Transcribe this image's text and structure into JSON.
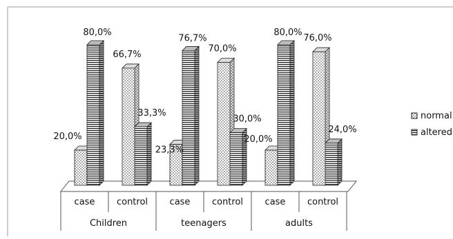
{
  "chart_data": {
    "type": "bar",
    "title": "",
    "xlabel": "",
    "ylabel": "",
    "ylim": [
      0,
      100
    ],
    "groups": [
      "Children",
      "teenagers",
      "adults"
    ],
    "categories": [
      "case",
      "control",
      "case",
      "control",
      "case",
      "control"
    ],
    "category_group_index": [
      0,
      0,
      1,
      1,
      2,
      2
    ],
    "series": [
      {
        "name": "normal",
        "values": [
          20.0,
          66.7,
          23.3,
          70.0,
          20.0,
          76.0
        ],
        "labels": [
          "20,0%",
          "66,7%",
          "23,3%",
          "70,0%",
          "20,0%",
          "76,0%"
        ]
      },
      {
        "name": "altered",
        "values": [
          80.0,
          33.3,
          76.7,
          30.0,
          80.0,
          24.0
        ],
        "labels": [
          "80,0%",
          "33,3%",
          "76,7%",
          "30,0%",
          "80,0%",
          "24,0%"
        ]
      }
    ],
    "legend_position": "right",
    "grid": false,
    "style": "3d-bars",
    "colors": {
      "normal": "#ffffff",
      "altered": "#ffffff",
      "ink": "#222222",
      "frame": "#808080"
    }
  }
}
